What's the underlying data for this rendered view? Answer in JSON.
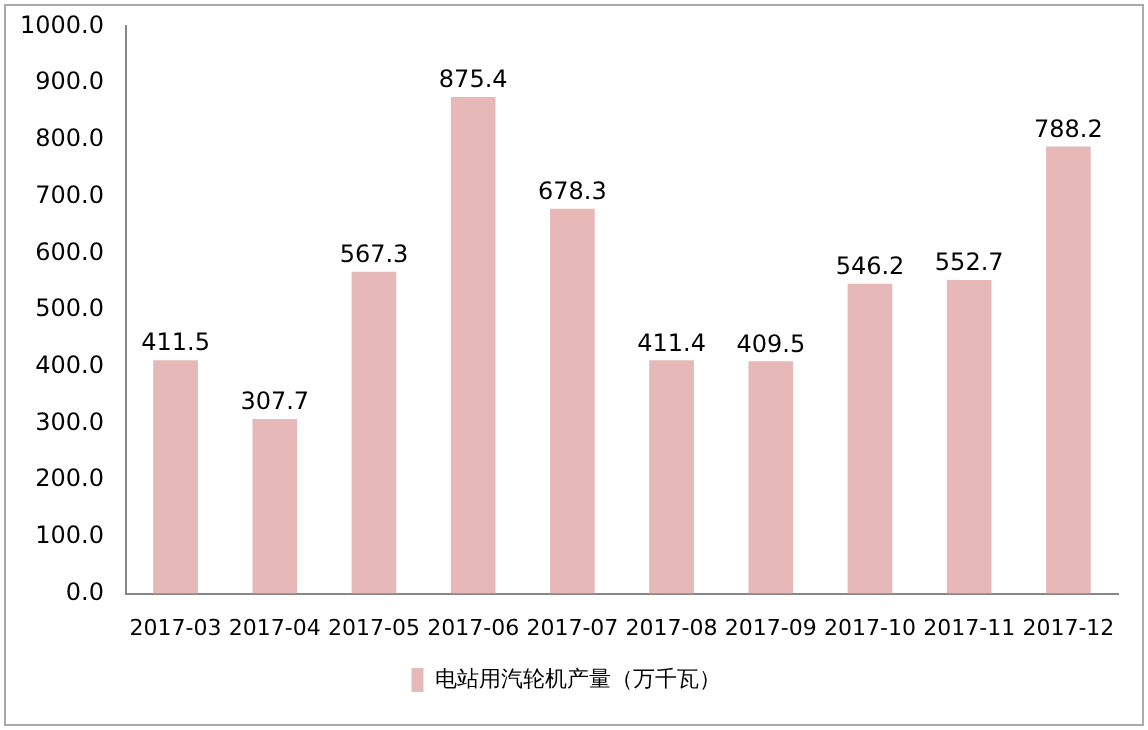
{
  "chart_data": {
    "type": "bar",
    "categories": [
      "2017-03",
      "2017-04",
      "2017-05",
      "2017-06",
      "2017-07",
      "2017-08",
      "2017-09",
      "2017-10",
      "2017-11",
      "2017-12"
    ],
    "series": [
      {
        "name": "电站用汽轮机产量（万千瓦）",
        "color": "#e6b9b8",
        "values": [
          411.5,
          307.7,
          567.3,
          875.4,
          678.3,
          411.4,
          409.5,
          546.2,
          552.7,
          788.2
        ]
      }
    ],
    "ylim": [
      0,
      1000
    ],
    "yticks": [
      {
        "value": 0,
        "label": "0.0"
      },
      {
        "value": 100,
        "label": "100.0"
      },
      {
        "value": 200,
        "label": "200.0"
      },
      {
        "value": 300,
        "label": "300.0"
      },
      {
        "value": 400,
        "label": "400.0"
      },
      {
        "value": 500,
        "label": "500.0"
      },
      {
        "value": 600,
        "label": "600.0"
      },
      {
        "value": 700,
        "label": "700.0"
      },
      {
        "value": 800,
        "label": "800.0"
      },
      {
        "value": 900,
        "label": "900.0"
      },
      {
        "value": 1000,
        "label": "1000.0"
      }
    ],
    "grid": false,
    "legend": "bottom",
    "data_labels": true
  }
}
